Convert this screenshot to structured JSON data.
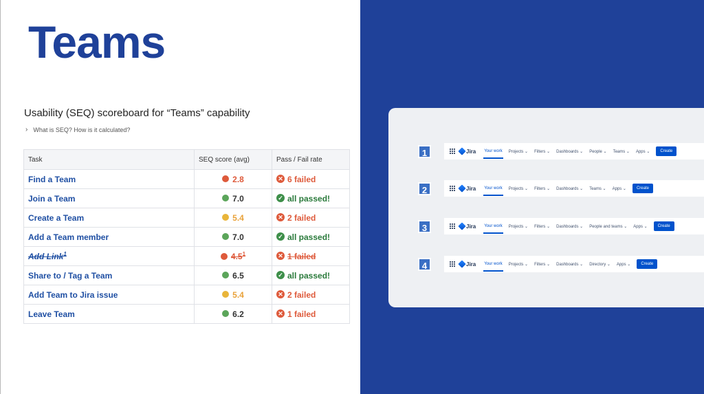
{
  "title": "Teams",
  "subtitle": "Usability (SEQ) scoreboard for “Teams” capability",
  "expander": {
    "label": "What is SEQ? How is it calculated?"
  },
  "table": {
    "headers": [
      "Task",
      "SEQ score (avg)",
      "Pass / Fail rate"
    ],
    "rows": [
      {
        "task": "Find a Team",
        "score": "2.8",
        "pf": "6 failed"
      },
      {
        "task": "Join a Team",
        "score": "7.0",
        "pf": "all passed!"
      },
      {
        "task": "Create a Team",
        "score": "5.4",
        "pf": "2 failed"
      },
      {
        "task": "Add a Team member",
        "score": "7.0",
        "pf": "all passed!"
      },
      {
        "task": "Add Link",
        "sup": "1",
        "score": "4.5",
        "score_sup": "1",
        "pf": "1 failed"
      },
      {
        "task": "Share to / Tag a Team",
        "score": "6.5",
        "pf": "all passed!"
      },
      {
        "task": "Add Team to Jira issue",
        "score": "5.4",
        "pf": "2 failed"
      },
      {
        "task": "Leave Team",
        "score": "6.2",
        "pf": "1 failed"
      }
    ]
  },
  "nav_variants": [
    {
      "number": "1",
      "logo": "Jira",
      "items": [
        "Your work",
        "Projects",
        "Filters",
        "Dashboards",
        "People",
        "Teams",
        "Apps"
      ],
      "create": "Create"
    },
    {
      "number": "2",
      "logo": "Jira",
      "items": [
        "Your work",
        "Projects",
        "Filters",
        "Dashboards",
        "Teams",
        "Apps"
      ],
      "create": "Create"
    },
    {
      "number": "3",
      "logo": "Jira",
      "items": [
        "Your work",
        "Projects",
        "Filters",
        "Dashboards",
        "People and teams",
        "Apps"
      ],
      "create": "Create"
    },
    {
      "number": "4",
      "logo": "Jira",
      "items": [
        "Your work",
        "Projects",
        "Filters",
        "Dashboards",
        "Directory",
        "Apps"
      ],
      "create": "Create"
    }
  ],
  "colors": {
    "brand_blue": "#1f4199",
    "fail": "#de5a3b",
    "pass": "#3e8f4a",
    "warn": "#e9b53a",
    "jira_blue": "#0052cc"
  }
}
